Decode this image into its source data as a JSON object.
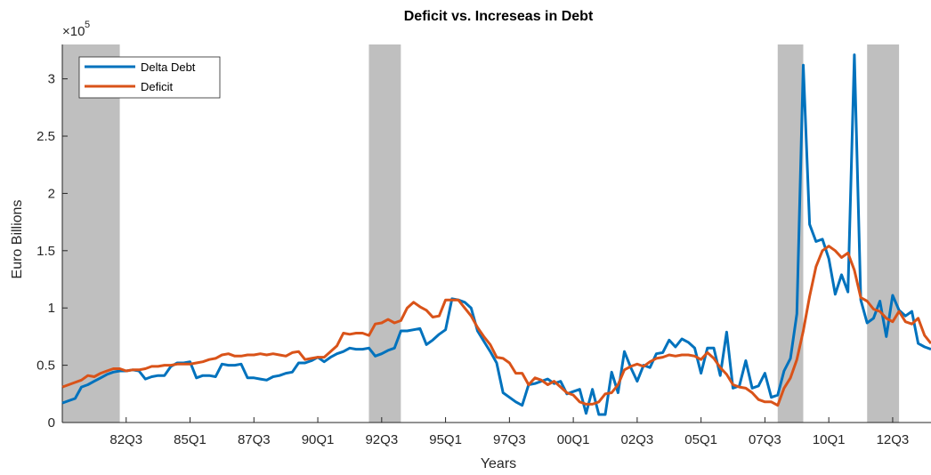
{
  "chart_data": {
    "type": "line",
    "title": "Deficit vs. Increseas in Debt",
    "xlabel": "Years",
    "ylabel": "Euro Billions",
    "y_exponent_base": "×10",
    "y_exponent_power": "5",
    "x_range": [
      1980.0,
      2014.0
    ],
    "y_range": [
      0,
      3.3
    ],
    "y_ticks": [
      0,
      0.5,
      1,
      1.5,
      2,
      2.5,
      3
    ],
    "y_tick_labels": [
      "0",
      "0.5",
      "1",
      "1.5",
      "2",
      "2.5",
      "3"
    ],
    "x_ticks": [
      1982.5,
      1985.0,
      1987.5,
      1990.0,
      1992.5,
      1995.0,
      1997.5,
      2000.0,
      2002.5,
      2005.0,
      2007.5,
      2010.0,
      2012.5
    ],
    "x_tick_labels": [
      "82Q3",
      "85Q1",
      "87Q3",
      "90Q1",
      "92Q3",
      "95Q1",
      "97Q3",
      "00Q1",
      "02Q3",
      "05Q1",
      "07Q3",
      "10Q1",
      "12Q3"
    ],
    "recession_bands": [
      [
        1980.0,
        1982.25
      ],
      [
        1992.0,
        1993.25
      ],
      [
        2008.0,
        2009.0
      ],
      [
        2011.5,
        2012.75
      ]
    ],
    "legend_position": "top-left",
    "grid": false,
    "series": [
      {
        "name": "Delta Debt",
        "color": "#0072BD",
        "points": [
          [
            1980.0,
            0.17
          ],
          [
            1980.25,
            0.19
          ],
          [
            1980.5,
            0.21
          ],
          [
            1980.75,
            0.31
          ],
          [
            1981.0,
            0.33
          ],
          [
            1981.25,
            0.36
          ],
          [
            1981.5,
            0.39
          ],
          [
            1981.75,
            0.42
          ],
          [
            1982.0,
            0.44
          ],
          [
            1982.25,
            0.45
          ],
          [
            1982.5,
            0.45
          ],
          [
            1982.75,
            0.46
          ],
          [
            1983.0,
            0.45
          ],
          [
            1983.25,
            0.38
          ],
          [
            1983.5,
            0.4
          ],
          [
            1983.75,
            0.41
          ],
          [
            1984.0,
            0.41
          ],
          [
            1984.25,
            0.49
          ],
          [
            1984.5,
            0.52
          ],
          [
            1984.75,
            0.52
          ],
          [
            1985.0,
            0.53
          ],
          [
            1985.25,
            0.39
          ],
          [
            1985.5,
            0.41
          ],
          [
            1985.75,
            0.41
          ],
          [
            1986.0,
            0.4
          ],
          [
            1986.25,
            0.51
          ],
          [
            1986.5,
            0.5
          ],
          [
            1986.75,
            0.5
          ],
          [
            1987.0,
            0.51
          ],
          [
            1987.25,
            0.39
          ],
          [
            1987.5,
            0.39
          ],
          [
            1987.75,
            0.38
          ],
          [
            1988.0,
            0.37
          ],
          [
            1988.25,
            0.4
          ],
          [
            1988.5,
            0.41
          ],
          [
            1988.75,
            0.43
          ],
          [
            1989.0,
            0.44
          ],
          [
            1989.25,
            0.52
          ],
          [
            1989.5,
            0.52
          ],
          [
            1989.75,
            0.54
          ],
          [
            1990.0,
            0.57
          ],
          [
            1990.25,
            0.53
          ],
          [
            1990.5,
            0.57
          ],
          [
            1990.75,
            0.6
          ],
          [
            1991.0,
            0.62
          ],
          [
            1991.25,
            0.65
          ],
          [
            1991.5,
            0.64
          ],
          [
            1991.75,
            0.64
          ],
          [
            1992.0,
            0.65
          ],
          [
            1992.25,
            0.58
          ],
          [
            1992.5,
            0.6
          ],
          [
            1992.75,
            0.63
          ],
          [
            1993.0,
            0.65
          ],
          [
            1993.25,
            0.8
          ],
          [
            1993.5,
            0.8
          ],
          [
            1993.75,
            0.81
          ],
          [
            1994.0,
            0.82
          ],
          [
            1994.25,
            0.68
          ],
          [
            1994.5,
            0.72
          ],
          [
            1994.75,
            0.77
          ],
          [
            1995.0,
            0.81
          ],
          [
            1995.25,
            1.08
          ],
          [
            1995.5,
            1.07
          ],
          [
            1995.75,
            1.05
          ],
          [
            1996.0,
            1.0
          ],
          [
            1996.25,
            0.8
          ],
          [
            1996.5,
            0.71
          ],
          [
            1996.75,
            0.62
          ],
          [
            1997.0,
            0.52
          ],
          [
            1997.25,
            0.26
          ],
          [
            1997.5,
            0.22
          ],
          [
            1997.75,
            0.18
          ],
          [
            1998.0,
            0.15
          ],
          [
            1998.25,
            0.33
          ],
          [
            1998.5,
            0.34
          ],
          [
            1998.75,
            0.36
          ],
          [
            1999.0,
            0.38
          ],
          [
            1999.25,
            0.34
          ],
          [
            1999.5,
            0.36
          ],
          [
            1999.75,
            0.25
          ],
          [
            2000.0,
            0.27
          ],
          [
            2000.25,
            0.29
          ],
          [
            2000.5,
            0.08
          ],
          [
            2000.75,
            0.29
          ],
          [
            2001.0,
            0.07
          ],
          [
            2001.25,
            0.07
          ],
          [
            2001.5,
            0.44
          ],
          [
            2001.75,
            0.26
          ],
          [
            2002.0,
            0.62
          ],
          [
            2002.25,
            0.48
          ],
          [
            2002.5,
            0.36
          ],
          [
            2002.75,
            0.5
          ],
          [
            2003.0,
            0.48
          ],
          [
            2003.25,
            0.6
          ],
          [
            2003.5,
            0.61
          ],
          [
            2003.75,
            0.72
          ],
          [
            2004.0,
            0.66
          ],
          [
            2004.25,
            0.73
          ],
          [
            2004.5,
            0.7
          ],
          [
            2004.75,
            0.65
          ],
          [
            2005.0,
            0.43
          ],
          [
            2005.25,
            0.65
          ],
          [
            2005.5,
            0.65
          ],
          [
            2005.75,
            0.41
          ],
          [
            2006.0,
            0.79
          ],
          [
            2006.25,
            0.3
          ],
          [
            2006.5,
            0.32
          ],
          [
            2006.75,
            0.54
          ],
          [
            2007.0,
            0.3
          ],
          [
            2007.25,
            0.32
          ],
          [
            2007.5,
            0.43
          ],
          [
            2007.75,
            0.22
          ],
          [
            2008.0,
            0.24
          ],
          [
            2008.25,
            0.45
          ],
          [
            2008.5,
            0.56
          ],
          [
            2008.75,
            0.95
          ],
          [
            2009.0,
            3.12
          ],
          [
            2009.25,
            1.73
          ],
          [
            2009.5,
            1.58
          ],
          [
            2009.75,
            1.6
          ],
          [
            2010.0,
            1.43
          ],
          [
            2010.25,
            1.12
          ],
          [
            2010.5,
            1.29
          ],
          [
            2010.75,
            1.14
          ],
          [
            2011.0,
            3.21
          ],
          [
            2011.25,
            1.07
          ],
          [
            2011.5,
            0.87
          ],
          [
            2011.75,
            0.91
          ],
          [
            2012.0,
            1.06
          ],
          [
            2012.25,
            0.75
          ],
          [
            2012.5,
            1.11
          ],
          [
            2012.75,
            0.98
          ],
          [
            2013.0,
            0.93
          ],
          [
            2013.25,
            0.97
          ],
          [
            2013.5,
            0.69
          ],
          [
            2013.75,
            0.66
          ],
          [
            2014.0,
            0.64
          ]
        ]
      },
      {
        "name": "Deficit",
        "color": "#D95319",
        "points": [
          [
            1980.0,
            0.31
          ],
          [
            1980.25,
            0.33
          ],
          [
            1980.5,
            0.35
          ],
          [
            1980.75,
            0.37
          ],
          [
            1981.0,
            0.41
          ],
          [
            1981.25,
            0.4
          ],
          [
            1981.5,
            0.43
          ],
          [
            1981.75,
            0.45
          ],
          [
            1982.0,
            0.47
          ],
          [
            1982.25,
            0.47
          ],
          [
            1982.5,
            0.45
          ],
          [
            1982.75,
            0.46
          ],
          [
            1983.0,
            0.46
          ],
          [
            1983.25,
            0.47
          ],
          [
            1983.5,
            0.49
          ],
          [
            1983.75,
            0.49
          ],
          [
            1984.0,
            0.5
          ],
          [
            1984.25,
            0.5
          ],
          [
            1984.5,
            0.51
          ],
          [
            1984.75,
            0.51
          ],
          [
            1985.0,
            0.51
          ],
          [
            1985.25,
            0.52
          ],
          [
            1985.5,
            0.53
          ],
          [
            1985.75,
            0.55
          ],
          [
            1986.0,
            0.56
          ],
          [
            1986.25,
            0.59
          ],
          [
            1986.5,
            0.6
          ],
          [
            1986.75,
            0.58
          ],
          [
            1987.0,
            0.58
          ],
          [
            1987.25,
            0.59
          ],
          [
            1987.5,
            0.59
          ],
          [
            1987.75,
            0.6
          ],
          [
            1988.0,
            0.59
          ],
          [
            1988.25,
            0.6
          ],
          [
            1988.5,
            0.59
          ],
          [
            1988.75,
            0.58
          ],
          [
            1989.0,
            0.61
          ],
          [
            1989.25,
            0.62
          ],
          [
            1989.5,
            0.55
          ],
          [
            1989.75,
            0.56
          ],
          [
            1990.0,
            0.57
          ],
          [
            1990.25,
            0.57
          ],
          [
            1990.5,
            0.62
          ],
          [
            1990.75,
            0.67
          ],
          [
            1991.0,
            0.78
          ],
          [
            1991.25,
            0.77
          ],
          [
            1991.5,
            0.78
          ],
          [
            1991.75,
            0.78
          ],
          [
            1992.0,
            0.76
          ],
          [
            1992.25,
            0.86
          ],
          [
            1992.5,
            0.87
          ],
          [
            1992.75,
            0.9
          ],
          [
            1993.0,
            0.87
          ],
          [
            1993.25,
            0.89
          ],
          [
            1993.5,
            1.0
          ],
          [
            1993.75,
            1.05
          ],
          [
            1994.0,
            1.01
          ],
          [
            1994.25,
            0.98
          ],
          [
            1994.5,
            0.92
          ],
          [
            1994.75,
            0.93
          ],
          [
            1995.0,
            1.07
          ],
          [
            1995.25,
            1.07
          ],
          [
            1995.5,
            1.07
          ],
          [
            1995.75,
            1.0
          ],
          [
            1996.0,
            0.93
          ],
          [
            1996.25,
            0.83
          ],
          [
            1996.5,
            0.75
          ],
          [
            1996.75,
            0.68
          ],
          [
            1997.0,
            0.57
          ],
          [
            1997.25,
            0.56
          ],
          [
            1997.5,
            0.52
          ],
          [
            1997.75,
            0.43
          ],
          [
            1998.0,
            0.43
          ],
          [
            1998.25,
            0.33
          ],
          [
            1998.5,
            0.39
          ],
          [
            1998.75,
            0.37
          ],
          [
            1999.0,
            0.33
          ],
          [
            1999.25,
            0.36
          ],
          [
            1999.5,
            0.31
          ],
          [
            1999.75,
            0.26
          ],
          [
            2000.0,
            0.24
          ],
          [
            2000.25,
            0.18
          ],
          [
            2000.5,
            0.16
          ],
          [
            2000.75,
            0.16
          ],
          [
            2001.0,
            0.18
          ],
          [
            2001.25,
            0.25
          ],
          [
            2001.5,
            0.26
          ],
          [
            2001.75,
            0.33
          ],
          [
            2002.0,
            0.46
          ],
          [
            2002.25,
            0.49
          ],
          [
            2002.5,
            0.51
          ],
          [
            2002.75,
            0.49
          ],
          [
            2003.0,
            0.53
          ],
          [
            2003.25,
            0.56
          ],
          [
            2003.5,
            0.57
          ],
          [
            2003.75,
            0.59
          ],
          [
            2004.0,
            0.58
          ],
          [
            2004.25,
            0.59
          ],
          [
            2004.5,
            0.59
          ],
          [
            2004.75,
            0.58
          ],
          [
            2005.0,
            0.55
          ],
          [
            2005.25,
            0.61
          ],
          [
            2005.5,
            0.56
          ],
          [
            2005.75,
            0.48
          ],
          [
            2006.0,
            0.42
          ],
          [
            2006.25,
            0.33
          ],
          [
            2006.5,
            0.31
          ],
          [
            2006.75,
            0.3
          ],
          [
            2007.0,
            0.26
          ],
          [
            2007.25,
            0.2
          ],
          [
            2007.5,
            0.18
          ],
          [
            2007.75,
            0.18
          ],
          [
            2008.0,
            0.15
          ],
          [
            2008.25,
            0.3
          ],
          [
            2008.5,
            0.39
          ],
          [
            2008.75,
            0.55
          ],
          [
            2009.0,
            0.8
          ],
          [
            2009.25,
            1.1
          ],
          [
            2009.5,
            1.36
          ],
          [
            2009.75,
            1.5
          ],
          [
            2010.0,
            1.54
          ],
          [
            2010.25,
            1.5
          ],
          [
            2010.5,
            1.44
          ],
          [
            2010.75,
            1.48
          ],
          [
            2011.0,
            1.33
          ],
          [
            2011.25,
            1.09
          ],
          [
            2011.5,
            1.06
          ],
          [
            2011.75,
            0.99
          ],
          [
            2012.0,
            0.97
          ],
          [
            2012.25,
            0.91
          ],
          [
            2012.5,
            0.88
          ],
          [
            2012.75,
            0.97
          ],
          [
            2013.0,
            0.88
          ],
          [
            2013.25,
            0.86
          ],
          [
            2013.5,
            0.91
          ],
          [
            2013.75,
            0.76
          ],
          [
            2014.0,
            0.69
          ]
        ]
      }
    ]
  }
}
